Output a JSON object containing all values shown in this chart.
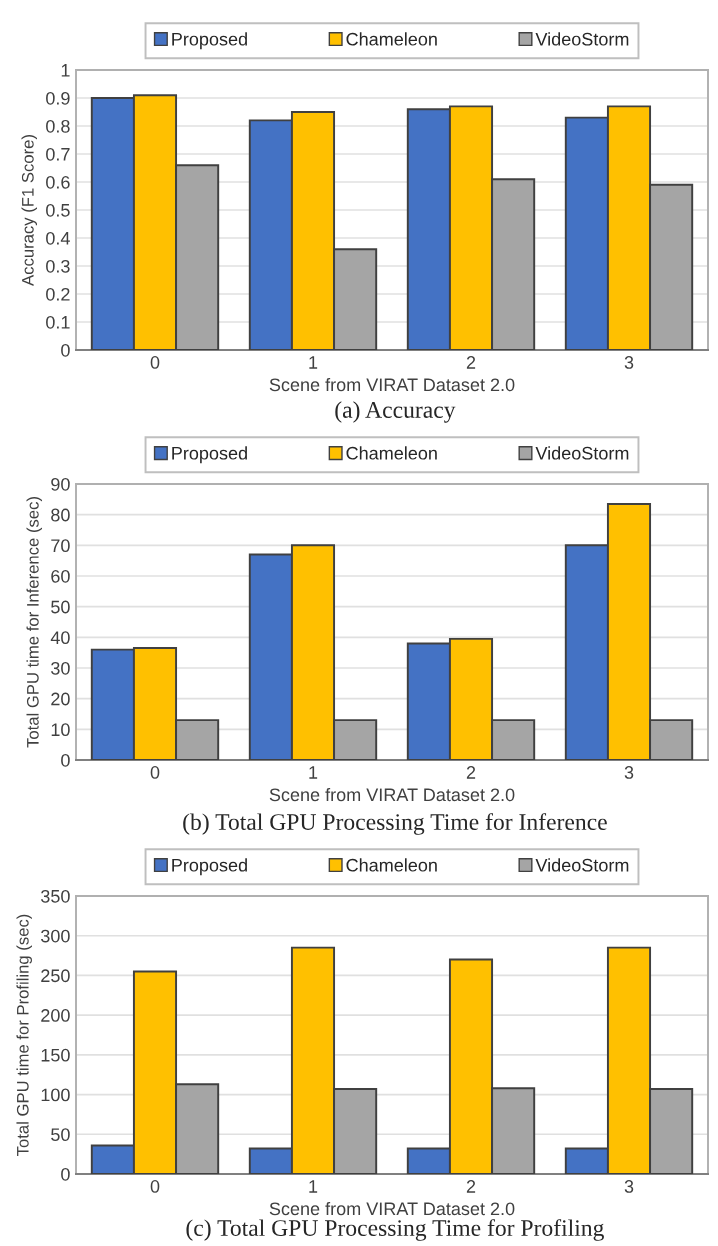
{
  "chart_data": [
    {
      "type": "bar",
      "title": "(a) Accuracy",
      "xlabel": "Scene from VIRAT Dataset 2.0",
      "ylabel": "Accuracy (F1 Score)",
      "categories": [
        "0",
        "1",
        "2",
        "3"
      ],
      "series": [
        {
          "name": "Proposed",
          "color": "#4472c4",
          "values": [
            0.9,
            0.82,
            0.86,
            0.83
          ]
        },
        {
          "name": "Chameleon",
          "color": "#ffc000",
          "values": [
            0.91,
            0.85,
            0.87,
            0.87
          ]
        },
        {
          "name": "VideoStorm",
          "color": "#a5a5a5",
          "values": [
            0.66,
            0.36,
            0.61,
            0.59
          ]
        }
      ],
      "ylim": [
        0,
        1
      ],
      "yticks": [
        0,
        0.1,
        0.2,
        0.3,
        0.4,
        0.5,
        0.6,
        0.7,
        0.8,
        0.9,
        1
      ],
      "grid": "y",
      "legend": "top"
    },
    {
      "type": "bar",
      "title": "(b) Total GPU Processing Time for Inference",
      "xlabel": "Scene from VIRAT Dataset 2.0",
      "ylabel": "Total GPU time for Inference (sec)",
      "categories": [
        "0",
        "1",
        "2",
        "3"
      ],
      "series": [
        {
          "name": "Proposed",
          "color": "#4472c4",
          "values": [
            36,
            67,
            38,
            70
          ]
        },
        {
          "name": "Chameleon",
          "color": "#ffc000",
          "values": [
            36.5,
            70,
            39.5,
            83.5
          ]
        },
        {
          "name": "VideoStorm",
          "color": "#a5a5a5",
          "values": [
            13,
            13,
            13,
            13
          ]
        }
      ],
      "ylim": [
        0,
        90
      ],
      "yticks": [
        0,
        10,
        20,
        30,
        40,
        50,
        60,
        70,
        80,
        90
      ],
      "grid": "y",
      "legend": "top"
    },
    {
      "type": "bar",
      "title": "(c) Total GPU Processing Time for Profiling",
      "xlabel": "Scene from VIRAT Dataset 2.0",
      "ylabel": "Total GPU time for Profiling (sec)",
      "categories": [
        "0",
        "1",
        "2",
        "3"
      ],
      "series": [
        {
          "name": "Proposed",
          "color": "#4472c4",
          "values": [
            36,
            32,
            32,
            32
          ]
        },
        {
          "name": "Chameleon",
          "color": "#ffc000",
          "values": [
            255,
            285,
            270,
            285
          ]
        },
        {
          "name": "VideoStorm",
          "color": "#a5a5a5",
          "values": [
            113,
            107,
            108,
            107
          ]
        }
      ],
      "ylim": [
        0,
        350
      ],
      "yticks": [
        0,
        50,
        100,
        150,
        200,
        250,
        300,
        350
      ],
      "grid": "y",
      "legend": "top"
    }
  ]
}
